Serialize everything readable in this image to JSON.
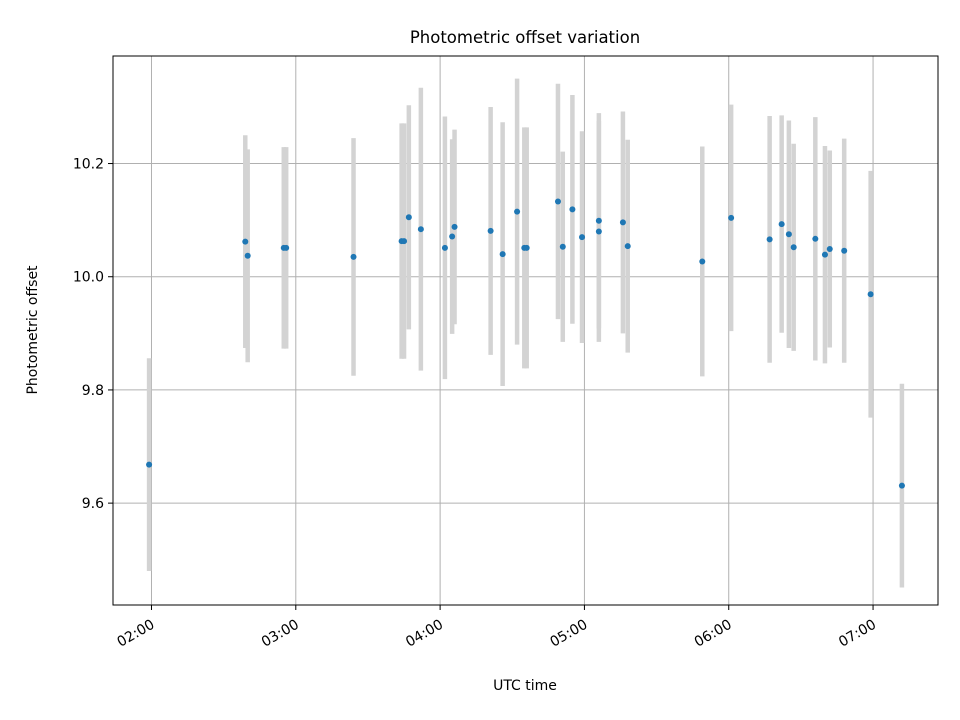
{
  "chart_data": {
    "type": "scatter",
    "title": "Photometric offset variation",
    "xlabel": "UTC time",
    "ylabel": "Photometric offset",
    "x_unit": "UTC time (HH:MM)",
    "xlim": [
      "01:44",
      "07:27"
    ],
    "ylim": [
      9.42,
      10.39
    ],
    "grid": true,
    "x_ticks": [
      "02:00",
      "03:00",
      "04:00",
      "05:00",
      "06:00",
      "07:00"
    ],
    "y_ticks": [
      "9.6",
      "9.8",
      "10.0",
      "10.2"
    ],
    "colors": {
      "points": "#1f77b4",
      "errorbars": "#d3d3d3",
      "grid": "#b0b0b0"
    },
    "points": [
      {
        "x": "01:59",
        "y": 9.668,
        "yerr": 0.188
      },
      {
        "x": "02:39",
        "y": 10.062,
        "yerr": 0.188
      },
      {
        "x": "02:40",
        "y": 10.037,
        "yerr": 0.188
      },
      {
        "x": "02:55",
        "y": 10.051,
        "yerr": 0.178
      },
      {
        "x": "02:56",
        "y": 10.051,
        "yerr": 0.178
      },
      {
        "x": "03:24",
        "y": 10.035,
        "yerr": 0.21
      },
      {
        "x": "03:44",
        "y": 10.063,
        "yerr": 0.208
      },
      {
        "x": "03:45",
        "y": 10.063,
        "yerr": 0.208
      },
      {
        "x": "03:47",
        "y": 10.105,
        "yerr": 0.198
      },
      {
        "x": "03:52",
        "y": 10.084,
        "yerr": 0.25
      },
      {
        "x": "04:02",
        "y": 10.051,
        "yerr": 0.232
      },
      {
        "x": "04:05",
        "y": 10.071,
        "yerr": 0.172
      },
      {
        "x": "04:06",
        "y": 10.088,
        "yerr": 0.172
      },
      {
        "x": "04:21",
        "y": 10.081,
        "yerr": 0.219
      },
      {
        "x": "04:26",
        "y": 10.04,
        "yerr": 0.233
      },
      {
        "x": "04:32",
        "y": 10.115,
        "yerr": 0.235
      },
      {
        "x": "04:35",
        "y": 10.051,
        "yerr": 0.213
      },
      {
        "x": "04:36",
        "y": 10.051,
        "yerr": 0.213
      },
      {
        "x": "04:49",
        "y": 10.133,
        "yerr": 0.208
      },
      {
        "x": "04:51",
        "y": 10.053,
        "yerr": 0.168
      },
      {
        "x": "04:55",
        "y": 10.119,
        "yerr": 0.202
      },
      {
        "x": "04:59",
        "y": 10.07,
        "yerr": 0.187
      },
      {
        "x": "05:06",
        "y": 10.099,
        "yerr": 0.19
      },
      {
        "x": "05:06",
        "y": 10.08,
        "yerr": 0.195
      },
      {
        "x": "05:16",
        "y": 10.096,
        "yerr": 0.196
      },
      {
        "x": "05:18",
        "y": 10.054,
        "yerr": 0.188
      },
      {
        "x": "05:49",
        "y": 10.027,
        "yerr": 0.203
      },
      {
        "x": "06:01",
        "y": 10.104,
        "yerr": 0.2
      },
      {
        "x": "06:17",
        "y": 10.066,
        "yerr": 0.218
      },
      {
        "x": "06:22",
        "y": 10.093,
        "yerr": 0.192
      },
      {
        "x": "06:25",
        "y": 10.075,
        "yerr": 0.201
      },
      {
        "x": "06:27",
        "y": 10.052,
        "yerr": 0.183
      },
      {
        "x": "06:36",
        "y": 10.067,
        "yerr": 0.215
      },
      {
        "x": "06:40",
        "y": 10.039,
        "yerr": 0.192
      },
      {
        "x": "06:42",
        "y": 10.049,
        "yerr": 0.174
      },
      {
        "x": "06:48",
        "y": 10.046,
        "yerr": 0.198
      },
      {
        "x": "06:59",
        "y": 9.969,
        "yerr": 0.218
      },
      {
        "x": "07:12",
        "y": 9.631,
        "yerr": 0.18
      }
    ]
  }
}
